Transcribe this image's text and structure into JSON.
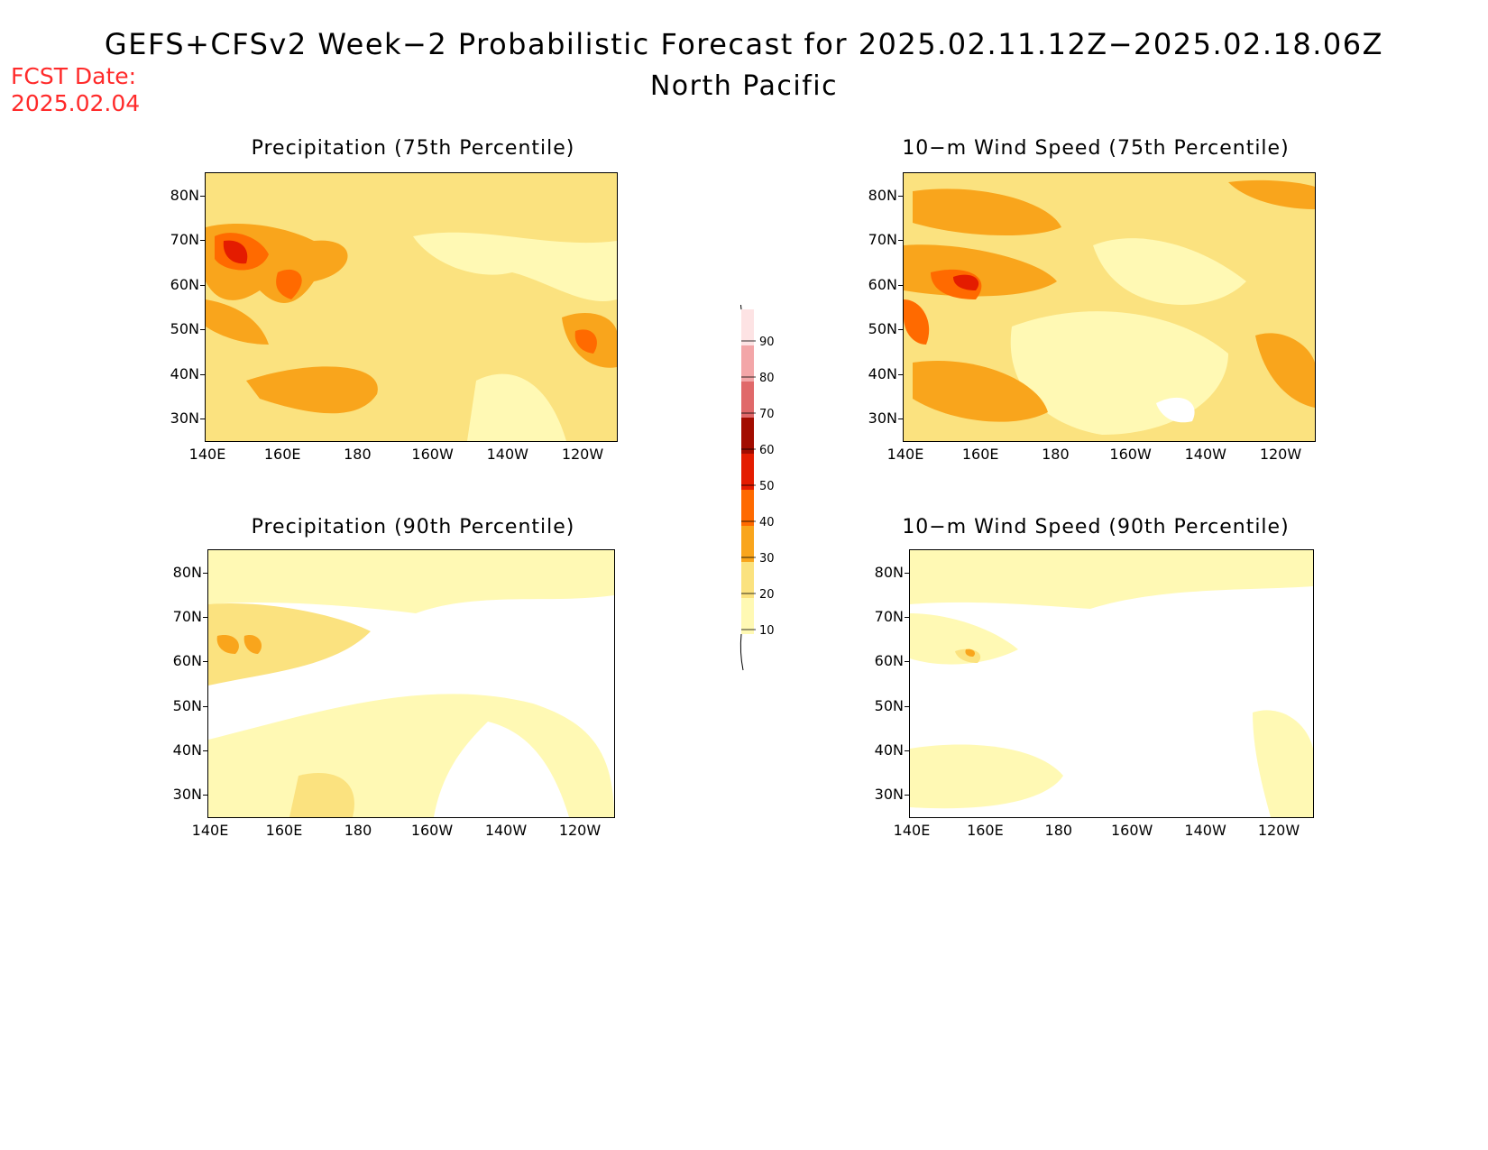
{
  "title": "GEFS+CFSv2 Week−2 Probabilistic Forecast for 2025.02.11.12Z−2025.02.18.06Z",
  "subtitle": "North Pacific",
  "fcst_date": {
    "label": "FCST Date:",
    "value": "2025.02.04"
  },
  "lat_labels": [
    "80N",
    "70N",
    "60N",
    "50N",
    "40N",
    "30N"
  ],
  "lon_labels": [
    "140E",
    "160E",
    "180",
    "160W",
    "140W",
    "120W"
  ],
  "panels": [
    {
      "id": "precip75",
      "title": "Precipitation (75th Percentile)",
      "intensity": "moderate"
    },
    {
      "id": "wind75",
      "title": "10−m Wind Speed (75th Percentile)",
      "intensity": "moderate"
    },
    {
      "id": "precip90",
      "title": "Precipitation (90th Percentile)",
      "intensity": "low"
    },
    {
      "id": "wind90",
      "title": "10−m Wind Speed (90th Percentile)",
      "intensity": "low"
    }
  ],
  "colorbar": {
    "levels": [
      "10",
      "20",
      "30",
      "40",
      "50",
      "60",
      "70",
      "80",
      "90"
    ],
    "colors": [
      "#fff9b4",
      "#fbe27f",
      "#f9a51c",
      "#ff6a00",
      "#e41c00",
      "#a20c00",
      "#e0696a",
      "#f3a6a8",
      "#fde3e4"
    ]
  }
}
